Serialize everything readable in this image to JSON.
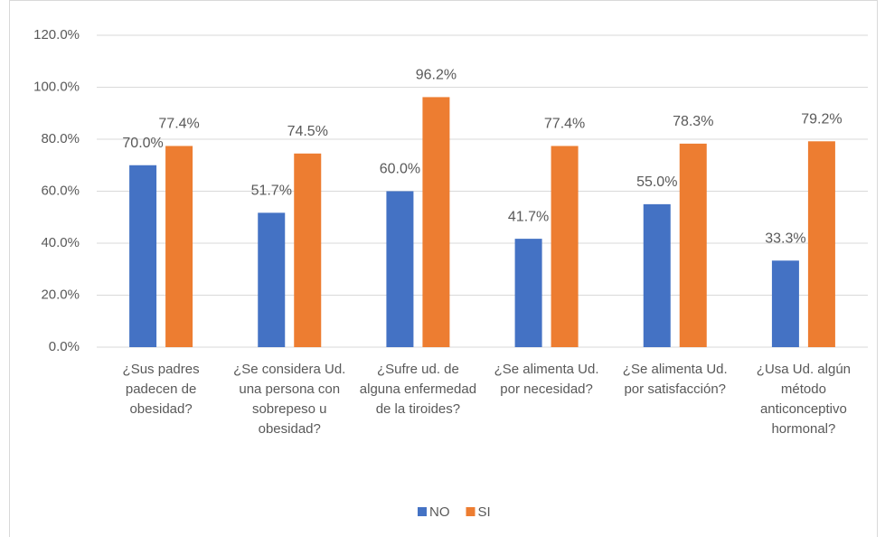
{
  "chart_data": {
    "type": "bar",
    "categories": [
      "¿Sus padres padecen de obesidad?",
      "¿Se considera Ud. una persona con sobrepeso u obesidad?",
      "¿Sufre ud. de alguna enfermedad de la tiroides?",
      "¿Se alimenta Ud. por necesidad?",
      "¿Se alimenta Ud. por satisfacción?",
      "¿Usa Ud. algún método anticonceptivo hormonal?"
    ],
    "series": [
      {
        "name": "NO",
        "color": "#4472c4",
        "values": [
          70.0,
          51.7,
          60.0,
          41.7,
          55.0,
          33.3
        ],
        "value_labels": [
          "70.0%",
          "51.7%",
          "60.0%",
          "41.7%",
          "55.0%",
          "33.3%"
        ]
      },
      {
        "name": "SI",
        "color": "#ed7d31",
        "values": [
          77.4,
          74.5,
          96.2,
          77.4,
          78.3,
          79.2
        ],
        "value_labels": [
          "77.4%",
          "74.5%",
          "96.2%",
          "77.4%",
          "78.3%",
          "79.2%"
        ]
      }
    ],
    "ylim": [
      0,
      120
    ],
    "yticks": [
      {
        "value": 0,
        "label": "0.0%"
      },
      {
        "value": 20,
        "label": "20.0%"
      },
      {
        "value": 40,
        "label": "40.0%"
      },
      {
        "value": 60,
        "label": "60.0%"
      },
      {
        "value": 80,
        "label": "80.0%"
      },
      {
        "value": 100,
        "label": "100.0%"
      },
      {
        "value": 120,
        "label": "120.0%"
      }
    ],
    "grid": true,
    "legend": "bottom"
  }
}
